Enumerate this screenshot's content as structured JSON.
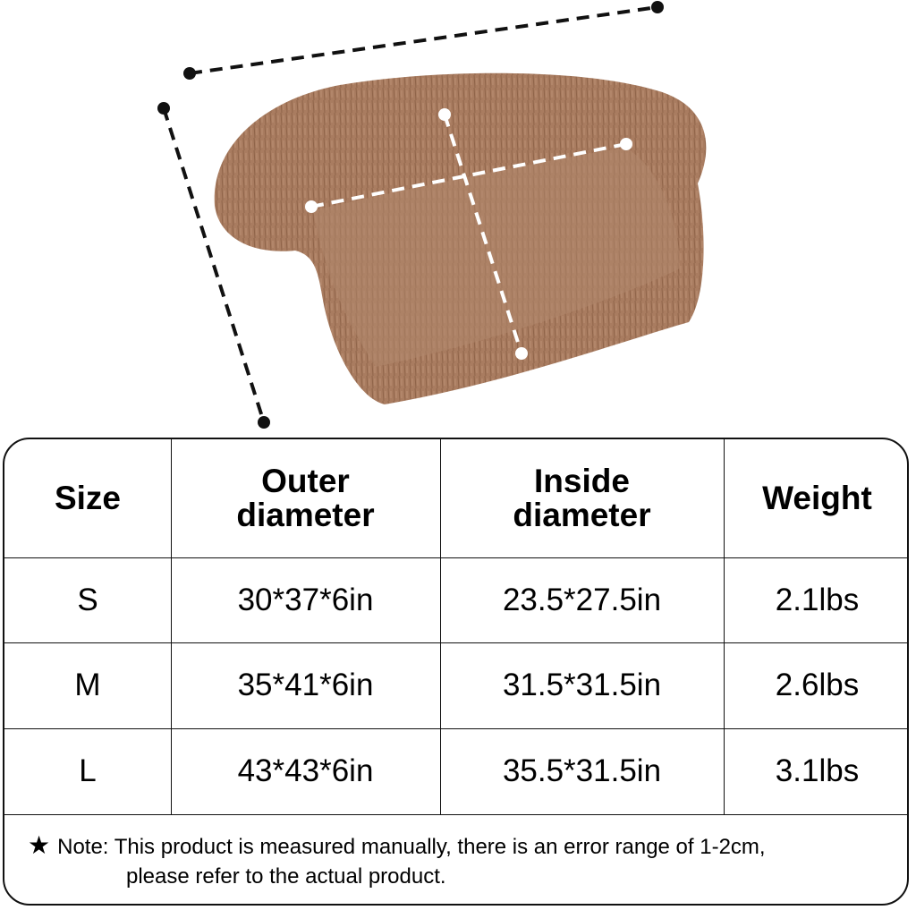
{
  "product_colors": {
    "fur": "#a97c60",
    "fur_dark": "#8a6048",
    "dimension_line": "#111111"
  },
  "table": {
    "headers": [
      "Size",
      "Outer diameter",
      "Inside diameter",
      "Weight"
    ],
    "header_lines": {
      "outer": [
        "Outer",
        "diameter"
      ],
      "inside": [
        "Inside",
        "diameter"
      ]
    },
    "rows": [
      {
        "size": "S",
        "outer": "30*37*6in",
        "inside": "23.5*27.5in",
        "weight": "2.1lbs"
      },
      {
        "size": "M",
        "outer": "35*41*6in",
        "inside": "31.5*31.5in",
        "weight": "2.6lbs"
      },
      {
        "size": "L",
        "outer": "43*43*6in",
        "inside": "35.5*31.5in",
        "weight": "3.1lbs"
      }
    ]
  },
  "note": {
    "icon": "star-icon",
    "line1": "Note: This product is measured manually, there is an error range of 1-2cm,",
    "line2": "please refer to the actual product."
  }
}
